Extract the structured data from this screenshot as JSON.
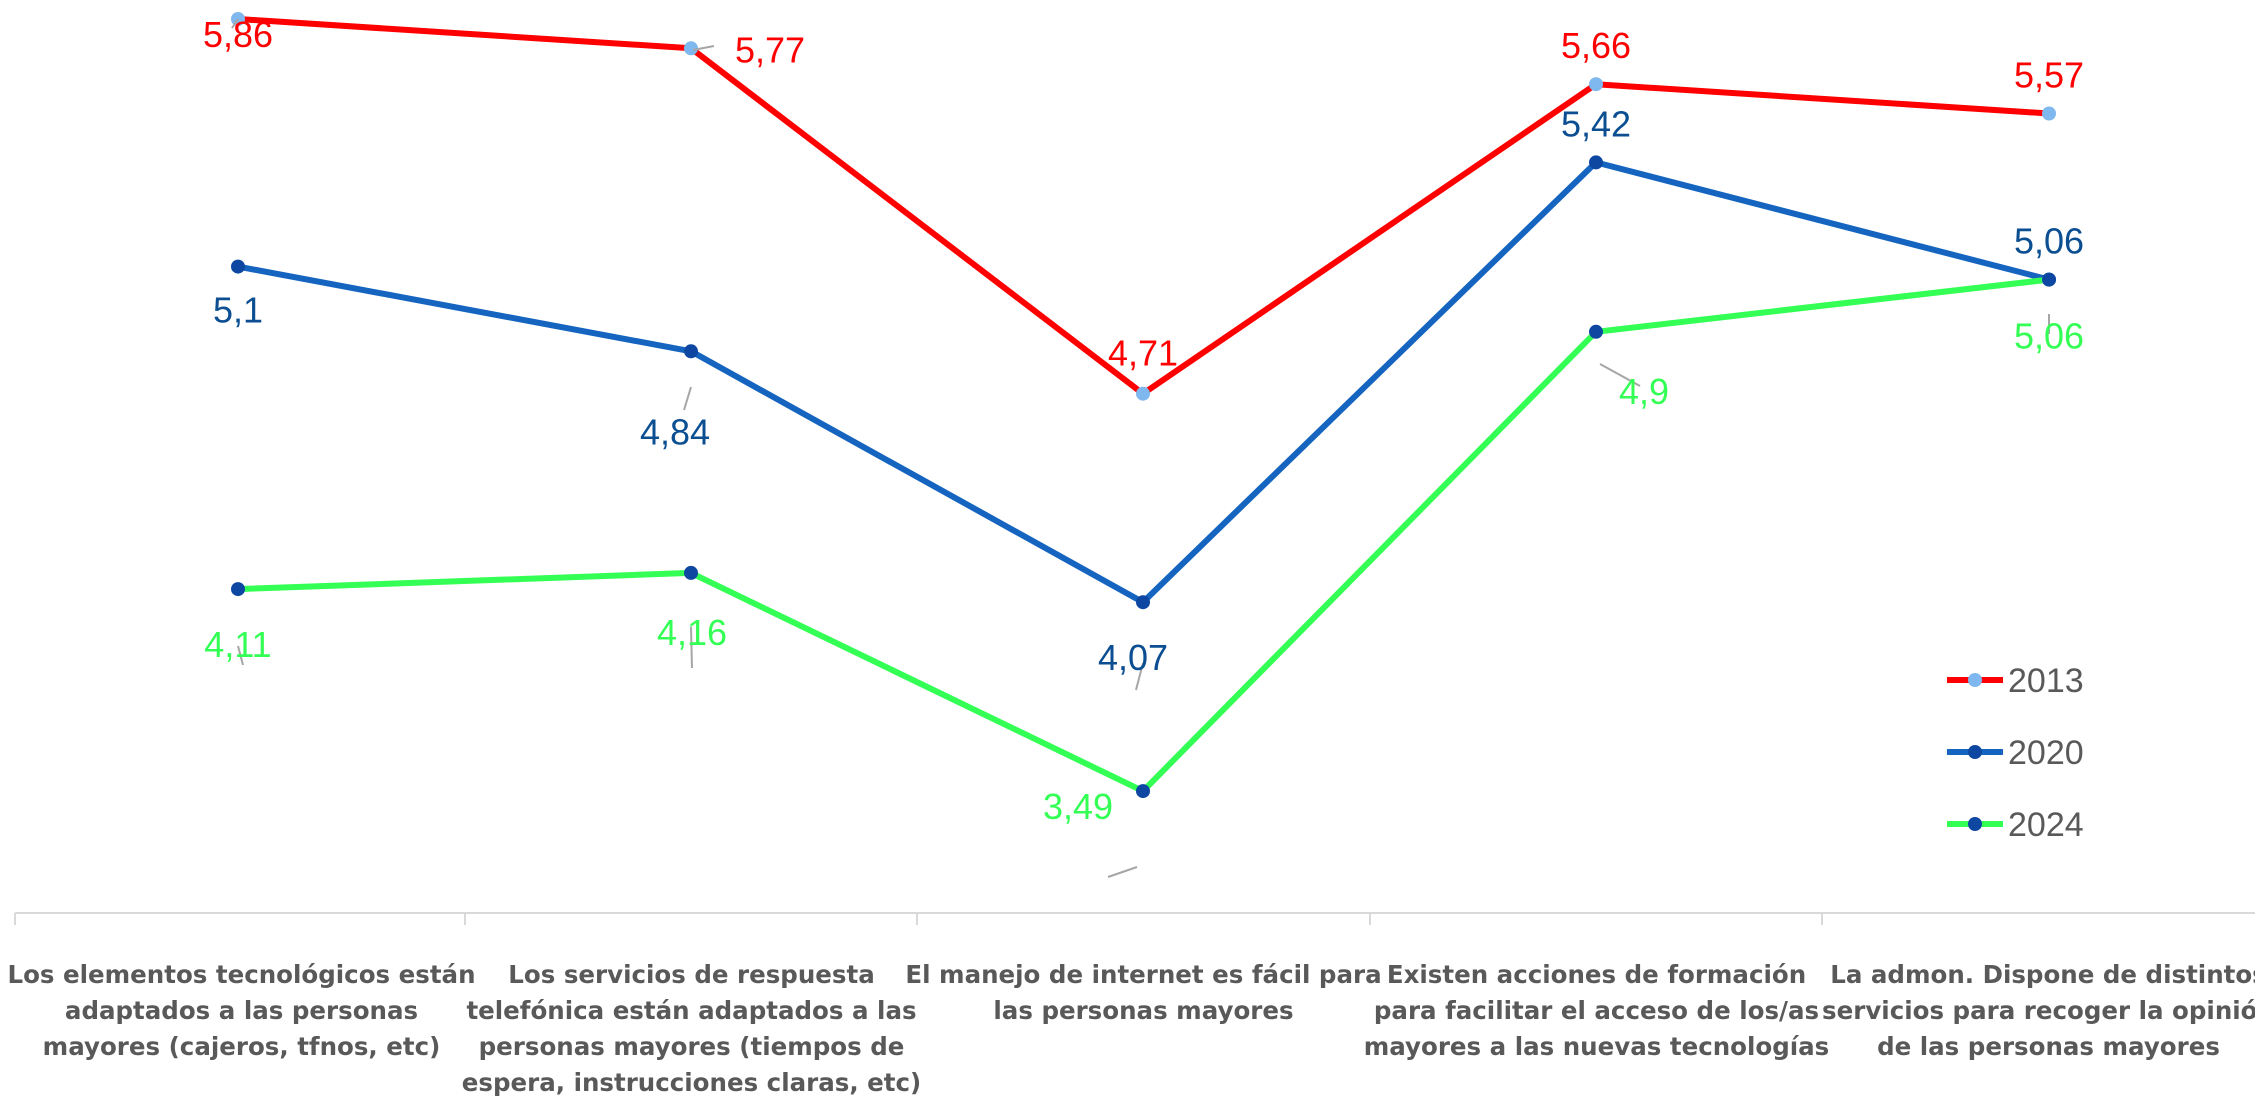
{
  "chart_data": {
    "type": "line",
    "categories": [
      [
        "Los elementos tecnológicos están",
        "adaptados a las personas",
        "mayores (cajeros, tfnos, etc)"
      ],
      [
        "Los servicios de respuesta",
        "telefónica están adaptados a las",
        "personas mayores (tiempos de",
        "espera, instrucciones claras, etc)"
      ],
      [
        "El manejo de internet es fácil para",
        "las personas mayores"
      ],
      [
        "Existen acciones de formación",
        "para facilitar el acceso de los/as",
        "mayores a las nuevas tecnologías"
      ],
      [
        "La admon. Dispone de distintos",
        "servicios para recoger la opinión",
        "de las personas mayores"
      ]
    ],
    "series": [
      {
        "name": "2013",
        "values": [
          5.86,
          5.77,
          4.71,
          5.66,
          5.57
        ],
        "labels": [
          "5,86",
          "5,77",
          "4,71",
          "5,66",
          "5,57"
        ],
        "line_color": "#FF0000",
        "marker_color": "#7FB8EE",
        "label_color": "#FF0000"
      },
      {
        "name": "2020",
        "values": [
          5.1,
          4.84,
          4.07,
          5.42,
          5.06
        ],
        "labels": [
          "5,1",
          "4,84",
          "4,07",
          "5,42",
          "5,06"
        ],
        "line_color": "#1565C0",
        "marker_color": "#0D47A1",
        "label_color": "#0B4E91"
      },
      {
        "name": "2024",
        "values": [
          4.11,
          4.16,
          3.49,
          4.9,
          5.06
        ],
        "labels": [
          "4,11",
          "4,16",
          "3,49",
          "4,9",
          "5,06"
        ],
        "line_color": "#33FF55",
        "marker_color": "#0D47A1",
        "label_color": "#33FF55"
      }
    ],
    "legend_position": "right",
    "grid": false
  }
}
